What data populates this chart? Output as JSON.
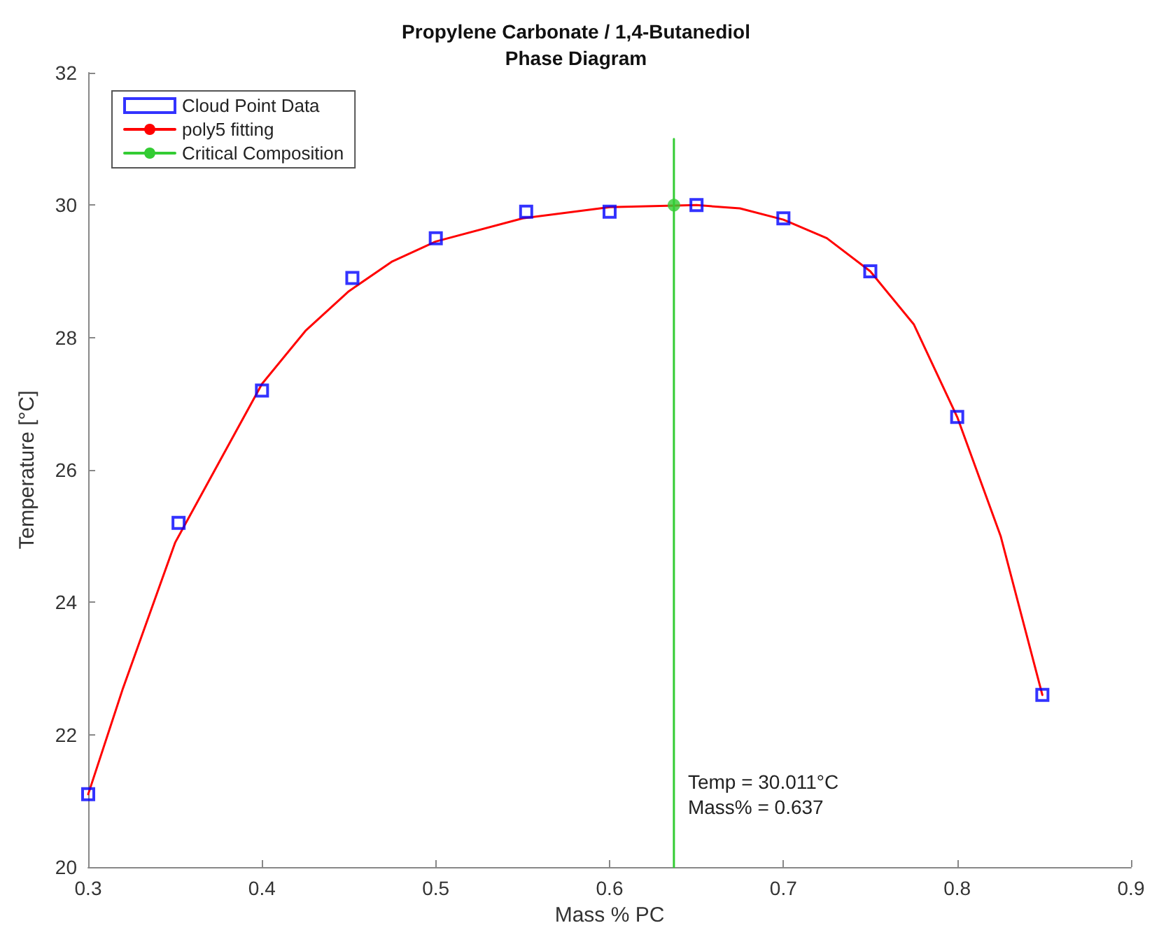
{
  "chart_data": {
    "type": "scatter",
    "title": "Propylene Carbonate / 1,4-Butanediol\nPhase Diagram",
    "xlabel": "Mass % PC",
    "ylabel": "Temperature [°C]",
    "xlim": [
      0.3,
      0.9
    ],
    "xticks": [
      0.3,
      0.4,
      0.5,
      0.6,
      0.7,
      0.8,
      0.9
    ],
    "ylim": [
      20,
      32
    ],
    "yticks": [
      20,
      22,
      24,
      26,
      28,
      30,
      32
    ],
    "grid": false,
    "legend": "top left",
    "series": [
      {
        "name": "Cloud Point Data",
        "marker": "square",
        "color": "#0000ff",
        "x": [
          0.3,
          0.352,
          0.4,
          0.452,
          0.5,
          0.552,
          0.6,
          0.65,
          0.7,
          0.75,
          0.8,
          0.849
        ],
        "values": [
          21.1,
          25.2,
          27.2,
          28.9,
          29.5,
          29.9,
          29.9,
          30.0,
          29.8,
          29.0,
          26.8,
          22.6
        ]
      },
      {
        "name": "poly5 fitting",
        "type": "line",
        "marker": "none",
        "line_style": "solid",
        "color": "#ff0000",
        "x": [
          0.3,
          0.32,
          0.35,
          0.375,
          0.4,
          0.425,
          0.45,
          0.475,
          0.5,
          0.55,
          0.6,
          0.65,
          0.675,
          0.7,
          0.725,
          0.75,
          0.775,
          0.8,
          0.825,
          0.849
        ],
        "values": [
          21.1,
          22.7,
          24.9,
          26.1,
          27.3,
          28.1,
          28.7,
          29.15,
          29.45,
          29.8,
          29.97,
          30.0,
          29.95,
          29.78,
          29.5,
          29.0,
          28.2,
          26.8,
          25.0,
          22.6
        ]
      },
      {
        "name": "Critical Composition",
        "type": "line",
        "marker": "none",
        "line_style": "solid",
        "color": "#33cc33",
        "x": [
          0.637,
          0.637
        ],
        "values": [
          20,
          31
        ]
      },
      {
        "marker": "circle",
        "color": "#33cc33",
        "x": [
          0.637
        ],
        "values": [
          30.0
        ]
      }
    ],
    "annotations": [
      "Temp = 30.011°C\nMass% = 0.637"
    ]
  }
}
